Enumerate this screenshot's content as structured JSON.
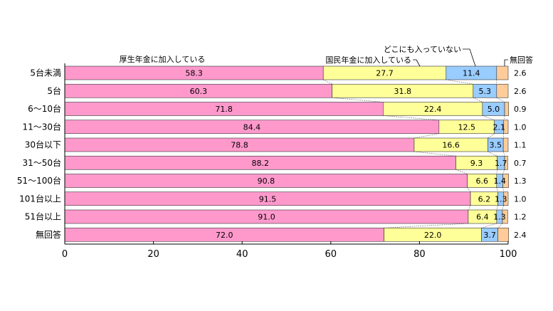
{
  "chart_data": {
    "type": "bar",
    "orientation": "horizontal",
    "stacked": true,
    "unit": "%",
    "categories": [
      "5台未満",
      "5台",
      "6～10台",
      "11～30台",
      "30台以下",
      "31～50台",
      "51～100台",
      "101台以上",
      "51台以上",
      "無回答"
    ],
    "series": [
      {
        "name": "厚生年金に加入している",
        "color": "#ff99cc",
        "values": [
          58.3,
          60.3,
          71.8,
          84.4,
          78.8,
          88.2,
          90.8,
          91.5,
          91.0,
          72.0
        ]
      },
      {
        "name": "国民年金に加入している",
        "color": "#ffff99",
        "values": [
          27.7,
          31.8,
          22.4,
          12.5,
          16.6,
          9.3,
          6.6,
          6.2,
          6.4,
          22.0
        ]
      },
      {
        "name": "どこにも入っていない",
        "color": "#99ccff",
        "values": [
          11.4,
          5.3,
          5.0,
          2.1,
          3.5,
          1.7,
          1.4,
          1.3,
          1.3,
          3.7
        ]
      },
      {
        "name": "無回答",
        "color": "#ffcc99",
        "values": [
          2.6,
          2.6,
          0.9,
          1.0,
          1.1,
          0.7,
          1.3,
          1.0,
          1.2,
          2.4
        ]
      }
    ],
    "xlim": [
      0,
      100
    ],
    "xticks": [
      0,
      20,
      40,
      60,
      80,
      100
    ],
    "grid": false,
    "legend_position": "top, leader lines"
  }
}
